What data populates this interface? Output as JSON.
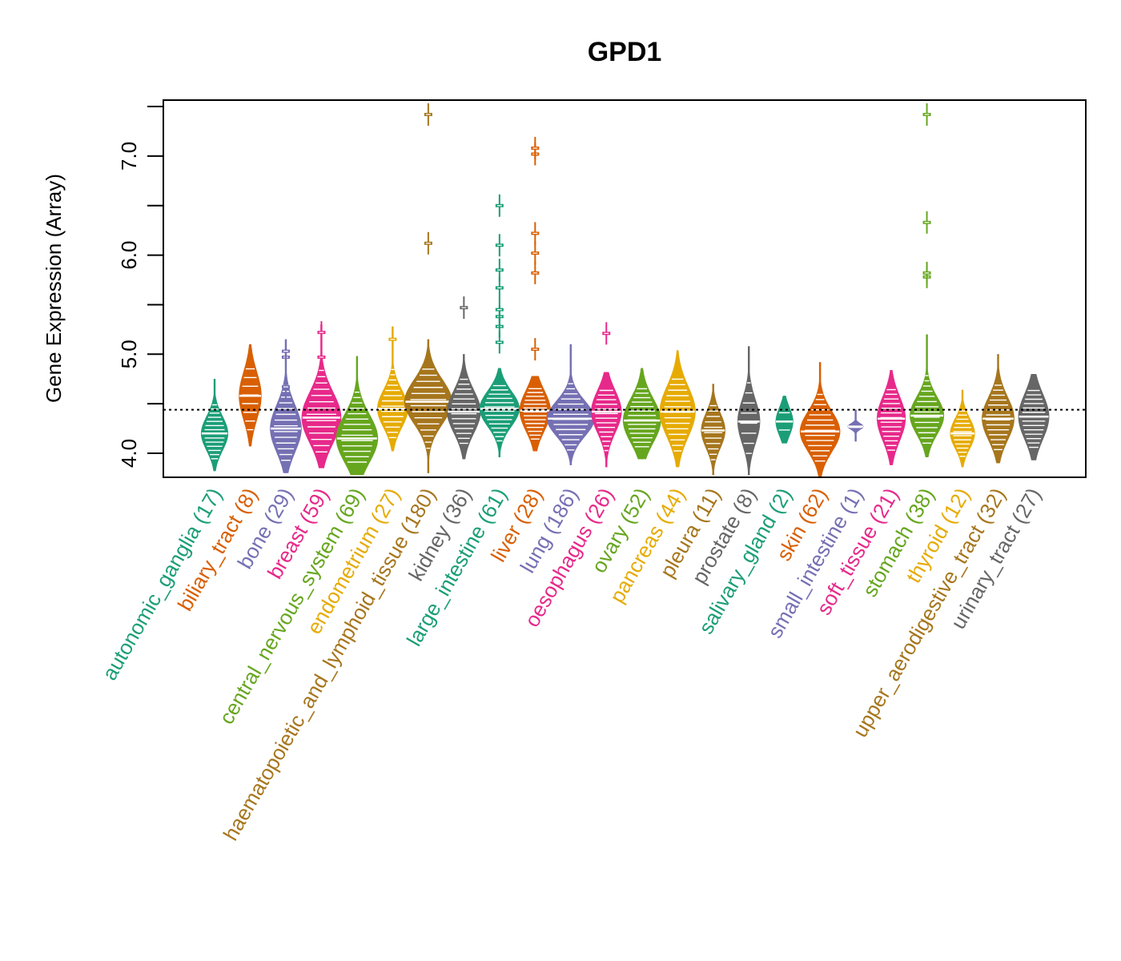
{
  "chart_data": {
    "type": "violin",
    "title": "GPD1",
    "xlabel": "",
    "ylabel": "Gene Expression (Array)",
    "ylim": [
      3.78,
      7.58
    ],
    "yticks": [
      4.0,
      4.5,
      5.0,
      5.5,
      6.0,
      6.5,
      7.0,
      7.5
    ],
    "ytick_labels": [
      "4.0",
      "",
      "5.0",
      "",
      "6.0",
      "",
      "7.0",
      ""
    ],
    "reference_line": 4.44,
    "grid": false,
    "legend": "none",
    "categories": [
      {
        "name": "autonomic_ganglia",
        "n": 17,
        "label": "autonomic_ganglia (17)",
        "color": "#1b9e77",
        "min": 3.82,
        "max": 4.75,
        "q1": 4.08,
        "median": 4.2,
        "q3": 4.35,
        "outliers": []
      },
      {
        "name": "biliary_tract",
        "n": 8,
        "label": "biliary_tract (8)",
        "color": "#d95f02",
        "min": 4.07,
        "max": 5.1,
        "q1": 4.38,
        "median": 4.58,
        "q3": 4.76,
        "outliers": []
      },
      {
        "name": "bone",
        "n": 29,
        "label": "bone (29)",
        "color": "#7570b3",
        "min": 3.8,
        "max": 5.15,
        "q1": 4.05,
        "median": 4.25,
        "q3": 4.42,
        "outliers": [
          4.67,
          4.97,
          5.03
        ]
      },
      {
        "name": "breast",
        "n": 59,
        "label": "breast (59)",
        "color": "#e7298a",
        "min": 3.85,
        "max": 5.3,
        "q1": 4.18,
        "median": 4.36,
        "q3": 4.58,
        "outliers": [
          4.97,
          5.22
        ]
      },
      {
        "name": "central_nervous_system",
        "n": 69,
        "label": "central_nervous_system (69)",
        "color": "#66a61e",
        "min": 3.78,
        "max": 4.98,
        "q1": 4.04,
        "median": 4.15,
        "q3": 4.42,
        "outliers": []
      },
      {
        "name": "endometrium",
        "n": 27,
        "label": "endometrium (27)",
        "color": "#e6ab02",
        "min": 4.02,
        "max": 5.28,
        "q1": 4.3,
        "median": 4.45,
        "q3": 4.6,
        "outliers": [
          5.15
        ]
      },
      {
        "name": "haematopoietic_and_lymphoid_tissue",
        "n": 180,
        "label": "haematopoietic_and_lymphoid_tissue (180)",
        "color": "#a6761d",
        "min": 3.8,
        "max": 5.15,
        "q1": 4.35,
        "median": 4.52,
        "q3": 4.7,
        "outliers": [
          6.12,
          7.42
        ]
      },
      {
        "name": "kidney",
        "n": 36,
        "label": "kidney (36)",
        "color": "#666666",
        "min": 3.94,
        "max": 5.0,
        "q1": 4.28,
        "median": 4.42,
        "q3": 4.62,
        "outliers": [
          5.47
        ]
      },
      {
        "name": "large_intestine",
        "n": 61,
        "label": "large_intestine (61)",
        "color": "#1b9e77",
        "min": 3.96,
        "max": 4.86,
        "q1": 4.32,
        "median": 4.45,
        "q3": 4.6,
        "outliers": [
          5.12,
          5.28,
          5.38,
          5.45,
          5.67,
          5.85,
          6.1,
          6.5
        ]
      },
      {
        "name": "liver",
        "n": 28,
        "label": "liver (28)",
        "color": "#d95f02",
        "min": 4.02,
        "max": 4.78,
        "q1": 4.28,
        "median": 4.43,
        "q3": 4.6,
        "outliers": [
          5.05,
          5.82,
          6.02,
          6.22,
          7.02,
          7.08
        ]
      },
      {
        "name": "lung",
        "n": 186,
        "label": "lung (186)",
        "color": "#7570b3",
        "min": 3.88,
        "max": 5.1,
        "q1": 4.2,
        "median": 4.35,
        "q3": 4.48,
        "outliers": []
      },
      {
        "name": "oesophagus",
        "n": 26,
        "label": "oesophagus (26)",
        "color": "#e7298a",
        "min": 3.86,
        "max": 4.82,
        "q1": 4.22,
        "median": 4.42,
        "q3": 4.55,
        "outliers": [
          5.21
        ]
      },
      {
        "name": "ovary",
        "n": 52,
        "label": "ovary (52)",
        "color": "#66a61e",
        "min": 3.94,
        "max": 4.86,
        "q1": 4.2,
        "median": 4.33,
        "q3": 4.55,
        "outliers": []
      },
      {
        "name": "pancreas",
        "n": 44,
        "label": "pancreas (44)",
        "color": "#e6ab02",
        "min": 3.86,
        "max": 5.04,
        "q1": 4.2,
        "median": 4.42,
        "q3": 4.6,
        "outliers": []
      },
      {
        "name": "pleura",
        "n": 11,
        "label": "pleura (11)",
        "color": "#a6761d",
        "min": 3.78,
        "max": 4.7,
        "q1": 4.1,
        "median": 4.23,
        "q3": 4.38,
        "outliers": []
      },
      {
        "name": "prostate",
        "n": 8,
        "label": "prostate (8)",
        "color": "#666666",
        "min": 3.78,
        "max": 5.08,
        "q1": 4.2,
        "median": 4.32,
        "q3": 4.55,
        "outliers": []
      },
      {
        "name": "salivary_gland",
        "n": 2,
        "label": "salivary_gland (2)",
        "color": "#1b9e77",
        "min": 4.1,
        "max": 4.58,
        "q1": 4.22,
        "median": 4.32,
        "q3": 4.44,
        "outliers": []
      },
      {
        "name": "skin",
        "n": 62,
        "label": "skin (62)",
        "color": "#d95f02",
        "min": 3.76,
        "max": 4.92,
        "q1": 4.1,
        "median": 4.22,
        "q3": 4.42,
        "outliers": []
      },
      {
        "name": "small_intestine",
        "n": 1,
        "label": "small_intestine (1)",
        "color": "#7570b3",
        "min": 4.12,
        "max": 4.44,
        "q1": 4.25,
        "median": 4.27,
        "q3": 4.29,
        "outliers": []
      },
      {
        "name": "soft_tissue",
        "n": 21,
        "label": "soft_tissue (21)",
        "color": "#e7298a",
        "min": 3.88,
        "max": 4.84,
        "q1": 4.2,
        "median": 4.35,
        "q3": 4.55,
        "outliers": []
      },
      {
        "name": "stomach",
        "n": 38,
        "label": "stomach (38)",
        "color": "#66a61e",
        "min": 3.96,
        "max": 5.2,
        "q1": 4.25,
        "median": 4.38,
        "q3": 4.55,
        "outliers": [
          5.78,
          5.82,
          6.33,
          7.42
        ]
      },
      {
        "name": "thyroid",
        "n": 12,
        "label": "thyroid (12)",
        "color": "#e6ab02",
        "min": 3.86,
        "max": 4.64,
        "q1": 4.08,
        "median": 4.2,
        "q3": 4.32,
        "outliers": []
      },
      {
        "name": "upper_aerodigestive_tract",
        "n": 32,
        "label": "upper_aerodigestive_tract (32)",
        "color": "#a6761d",
        "min": 3.9,
        "max": 5.0,
        "q1": 4.18,
        "median": 4.35,
        "q3": 4.52,
        "outliers": []
      },
      {
        "name": "urinary_tract",
        "n": 27,
        "label": "urinary_tract (27)",
        "color": "#666666",
        "min": 3.93,
        "max": 4.8,
        "q1": 4.2,
        "median": 4.37,
        "q3": 4.56,
        "outliers": []
      }
    ]
  }
}
